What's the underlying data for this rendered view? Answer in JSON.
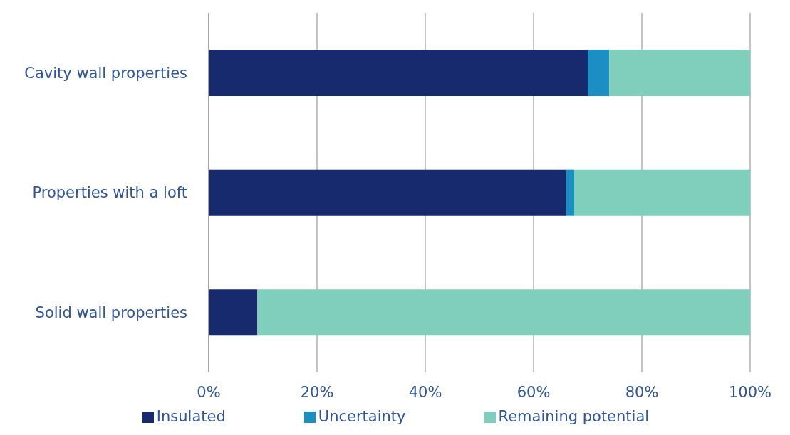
{
  "chart_data": {
    "type": "bar",
    "orientation": "horizontal",
    "stacked": true,
    "categories": [
      "Cavity wall properties",
      "Properties with a loft",
      "Solid wall properties"
    ],
    "series": [
      {
        "name": "Insulated",
        "color": "#172a6e",
        "values": [
          70,
          66,
          9
        ]
      },
      {
        "name": "Uncertainty",
        "color": "#1b8fc4",
        "values": [
          4,
          1.5,
          0
        ]
      },
      {
        "name": "Remaining potential",
        "color": "#80cfbd",
        "values": [
          26,
          32.5,
          91
        ]
      }
    ],
    "xlim": [
      0,
      100
    ],
    "xticks": [
      {
        "value": 0,
        "label": "0%"
      },
      {
        "value": 20,
        "label": "20%"
      },
      {
        "value": 40,
        "label": "40%"
      },
      {
        "value": 60,
        "label": "60%"
      },
      {
        "value": 80,
        "label": "80%"
      },
      {
        "value": 100,
        "label": "100%"
      }
    ],
    "grid": "x",
    "legend": "bottom"
  }
}
